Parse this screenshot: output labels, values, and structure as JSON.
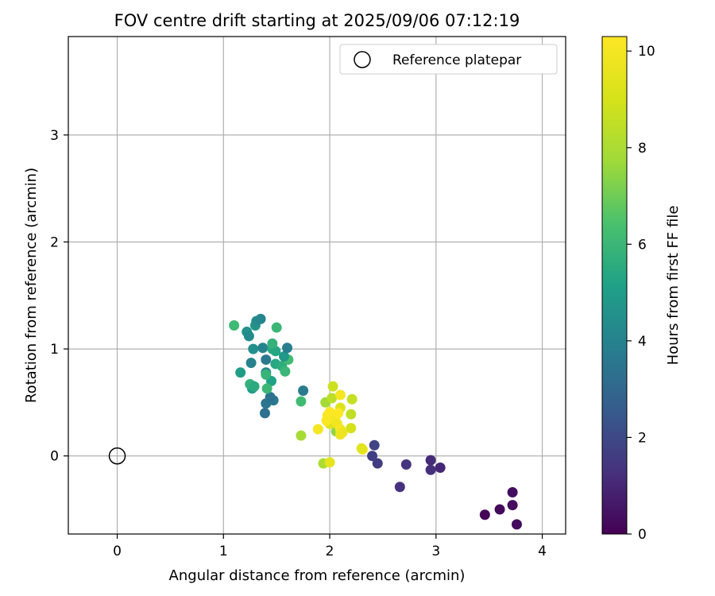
{
  "chart_data": {
    "type": "scatter",
    "title": "FOV centre drift starting at 2025/09/06 07:12:19",
    "xlabel": "Angular distance from reference (arcmin)",
    "ylabel": "Rotation from reference (arcmin)",
    "xlim": [
      -0.46,
      4.22
    ],
    "ylim": [
      -0.73,
      3.92
    ],
    "xticks": [
      0,
      1,
      2,
      3,
      4
    ],
    "yticks": [
      0,
      1,
      2,
      3
    ],
    "grid": true,
    "legend": {
      "position": "top-right",
      "entries": [
        "Reference platepar"
      ]
    },
    "reference_point": {
      "x": 0,
      "y": 0,
      "label": "Reference platepar"
    },
    "colorbar": {
      "label": "Hours from first FF file",
      "colormap": "viridis",
      "range": [
        0,
        10.3
      ],
      "ticks": [
        0,
        2,
        4,
        6,
        8,
        10
      ]
    },
    "points": [
      {
        "x": 3.46,
        "y": -0.55,
        "c": 0.1
      },
      {
        "x": 3.6,
        "y": -0.5,
        "c": 0.2
      },
      {
        "x": 3.72,
        "y": -0.34,
        "c": 0.3
      },
      {
        "x": 3.72,
        "y": -0.46,
        "c": 0.35
      },
      {
        "x": 3.76,
        "y": -0.64,
        "c": 0.25
      },
      {
        "x": 3.04,
        "y": -0.11,
        "c": 1.0
      },
      {
        "x": 2.95,
        "y": -0.04,
        "c": 1.1
      },
      {
        "x": 2.95,
        "y": -0.13,
        "c": 1.2
      },
      {
        "x": 2.72,
        "y": -0.08,
        "c": 1.4
      },
      {
        "x": 2.66,
        "y": -0.29,
        "c": 1.3
      },
      {
        "x": 2.45,
        "y": -0.07,
        "c": 1.6
      },
      {
        "x": 2.42,
        "y": 0.1,
        "c": 1.8
      },
      {
        "x": 2.4,
        "y": 0.0,
        "c": 1.7
      },
      {
        "x": 1.39,
        "y": 0.4,
        "c": 3.3
      },
      {
        "x": 1.4,
        "y": 0.49,
        "c": 3.5
      },
      {
        "x": 1.47,
        "y": 0.52,
        "c": 3.6
      },
      {
        "x": 1.44,
        "y": 0.55,
        "c": 3.4
      },
      {
        "x": 1.75,
        "y": 0.61,
        "c": 3.7
      },
      {
        "x": 1.27,
        "y": 0.63,
        "c": 5.0
      },
      {
        "x": 1.25,
        "y": 0.67,
        "c": 5.8
      },
      {
        "x": 1.29,
        "y": 0.65,
        "c": 5.5
      },
      {
        "x": 1.45,
        "y": 0.7,
        "c": 5.2
      },
      {
        "x": 1.4,
        "y": 0.78,
        "c": 4.2
      },
      {
        "x": 1.4,
        "y": 0.76,
        "c": 5.9
      },
      {
        "x": 1.16,
        "y": 0.78,
        "c": 5.0
      },
      {
        "x": 1.26,
        "y": 0.87,
        "c": 4.0
      },
      {
        "x": 1.4,
        "y": 0.9,
        "c": 3.6
      },
      {
        "x": 1.49,
        "y": 0.86,
        "c": 5.4
      },
      {
        "x": 1.55,
        "y": 0.84,
        "c": 5.6
      },
      {
        "x": 1.58,
        "y": 0.79,
        "c": 6.0
      },
      {
        "x": 1.61,
        "y": 0.9,
        "c": 6.2
      },
      {
        "x": 1.57,
        "y": 0.93,
        "c": 4.8
      },
      {
        "x": 1.28,
        "y": 1.0,
        "c": 4.5
      },
      {
        "x": 1.37,
        "y": 1.01,
        "c": 4.0
      },
      {
        "x": 1.46,
        "y": 1.0,
        "c": 5.5
      },
      {
        "x": 1.49,
        "y": 0.98,
        "c": 5.3
      },
      {
        "x": 1.46,
        "y": 1.05,
        "c": 5.8
      },
      {
        "x": 1.6,
        "y": 1.01,
        "c": 3.8
      },
      {
        "x": 1.22,
        "y": 1.16,
        "c": 4.6
      },
      {
        "x": 1.24,
        "y": 1.12,
        "c": 4.3
      },
      {
        "x": 1.3,
        "y": 1.22,
        "c": 4.7
      },
      {
        "x": 1.31,
        "y": 1.26,
        "c": 4.4
      },
      {
        "x": 1.35,
        "y": 1.28,
        "c": 4.1
      },
      {
        "x": 1.5,
        "y": 1.2,
        "c": 6.0
      },
      {
        "x": 1.1,
        "y": 1.22,
        "c": 6.1
      },
      {
        "x": 1.41,
        "y": 0.63,
        "c": 6.0
      },
      {
        "x": 1.73,
        "y": 0.51,
        "c": 6.2
      },
      {
        "x": 1.73,
        "y": 0.19,
        "c": 7.9
      },
      {
        "x": 1.94,
        "y": -0.07,
        "c": 8.0
      },
      {
        "x": 2.0,
        "y": -0.06,
        "c": 9.5
      },
      {
        "x": 1.96,
        "y": 0.5,
        "c": 7.8
      },
      {
        "x": 2.02,
        "y": 0.54,
        "c": 8.4
      },
      {
        "x": 2.03,
        "y": 0.65,
        "c": 8.8
      },
      {
        "x": 2.1,
        "y": 0.57,
        "c": 10.0
      },
      {
        "x": 2.1,
        "y": 0.45,
        "c": 9.2
      },
      {
        "x": 2.21,
        "y": 0.53,
        "c": 8.6
      },
      {
        "x": 2.2,
        "y": 0.39,
        "c": 8.5
      },
      {
        "x": 2.2,
        "y": 0.26,
        "c": 9.0
      },
      {
        "x": 2.06,
        "y": 0.23,
        "c": 7.5
      },
      {
        "x": 2.0,
        "y": 0.3,
        "c": 9.3
      },
      {
        "x": 1.89,
        "y": 0.25,
        "c": 10.0
      },
      {
        "x": 1.97,
        "y": 0.33,
        "c": 10.2
      },
      {
        "x": 1.98,
        "y": 0.38,
        "c": 10.1
      },
      {
        "x": 2.0,
        "y": 0.41,
        "c": 10.3
      },
      {
        "x": 2.03,
        "y": 0.36,
        "c": 10.2
      },
      {
        "x": 2.05,
        "y": 0.34,
        "c": 10.0
      },
      {
        "x": 2.08,
        "y": 0.4,
        "c": 10.3
      },
      {
        "x": 2.07,
        "y": 0.3,
        "c": 9.9
      },
      {
        "x": 2.1,
        "y": 0.25,
        "c": 10.1
      },
      {
        "x": 2.12,
        "y": 0.22,
        "c": 9.7
      },
      {
        "x": 2.1,
        "y": 0.2,
        "c": 9.8
      },
      {
        "x": 2.31,
        "y": 0.06,
        "c": 10.0
      },
      {
        "x": 2.3,
        "y": 0.07,
        "c": 9.4
      }
    ]
  }
}
